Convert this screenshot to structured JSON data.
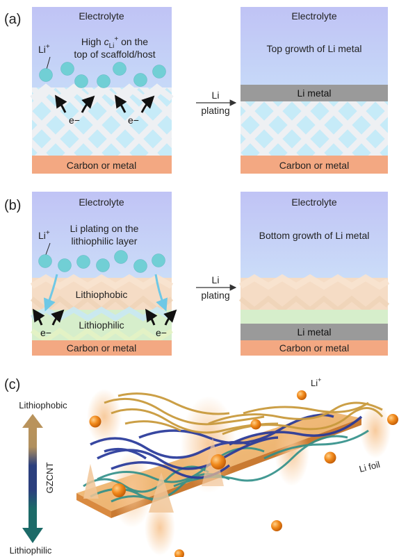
{
  "panel_a": {
    "label": "(a)",
    "left": {
      "electrolyte": "Electrolyte",
      "li_ion": "Li",
      "li_ion_sup": "+",
      "note_line1_pre": "High ",
      "note_line1_c": "c",
      "note_line1_sub": "Li",
      "note_line1_sup": "+",
      "note_line1_post": " on the",
      "note_line2": "top of scaffold/host",
      "electron_1": "e−",
      "electron_2": "e−",
      "substrate": "Carbon or metal"
    },
    "arrow": {
      "line1": "Li",
      "line2": "plating"
    },
    "right": {
      "electrolyte": "Electrolyte",
      "note": "Top growth of Li metal",
      "li_metal": "Li metal",
      "substrate": "Carbon or metal"
    }
  },
  "panel_b": {
    "label": "(b)",
    "left": {
      "electrolyte": "Electrolyte",
      "li_ion": "Li",
      "li_ion_sup": "+",
      "note_line1": "Li plating on the",
      "note_line2": "lithiophilic layer",
      "lithiophobic": "Lithiophobic",
      "lithiophilic": "Lithiophilic",
      "electron_1": "e−",
      "electron_2": "e−",
      "substrate": "Carbon or metal"
    },
    "arrow": {
      "line1": "Li",
      "line2": "plating"
    },
    "right": {
      "electrolyte": "Electrolyte",
      "note": "Bottom growth of Li metal",
      "li_metal": "Li metal",
      "substrate": "Carbon or metal"
    }
  },
  "panel_c": {
    "label": "(c)",
    "top_label": "Lithiophobic",
    "bottom_label": "Lithiophilic",
    "axis_label": "GZCNT",
    "li_ion": "Li",
    "li_ion_sup": "+",
    "li_foil": "Li foil"
  },
  "colors": {
    "electrolyte_top": "#c3c6f6",
    "electrolyte_bottom": "#cfeffb",
    "lattice_bg": "#c8ecf8",
    "scaffold": "#eef0f3",
    "ion": "#71cfd5",
    "substrate": "#f3a882",
    "li_metal": "#9a9a9a",
    "lithiophobic_band": "#f6dcc4",
    "lithiophilic_band": "#dcefc8",
    "orange_ball": "#f08a1a",
    "gradient_top": "#b8925a",
    "gradient_mid": "#2a3d7a",
    "gradient_bottom": "#1d6b6a"
  }
}
